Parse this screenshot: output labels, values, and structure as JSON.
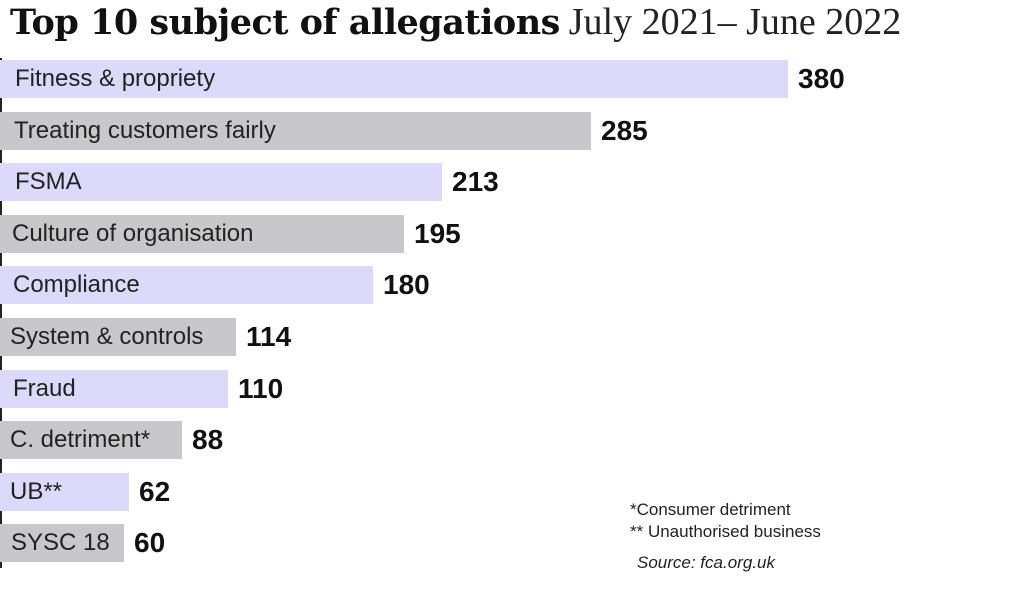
{
  "chart_data": {
    "type": "bar",
    "orientation": "horizontal",
    "title": "Top 10 subject of allegations",
    "subtitle": "July 2021– June 2022",
    "categories": [
      "Fitness & propriety",
      "Treating customers fairly",
      "FSMA",
      "Culture of organisation",
      "Compliance",
      "System & controls",
      "Fraud",
      "C. detriment*",
      "UB**",
      "SYSC 18"
    ],
    "values": [
      380,
      285,
      213,
      195,
      180,
      114,
      110,
      88,
      62,
      60
    ],
    "value_labels": [
      "380",
      "285",
      "213",
      "195",
      "180",
      "114",
      "110",
      "88",
      "62",
      "60"
    ],
    "bar_colors": [
      "#dcdafa",
      "#c8c8cc"
    ],
    "xlabel": "",
    "ylabel": "",
    "xlim": [
      0,
      380
    ],
    "grid": false,
    "legend": "none"
  },
  "notes": {
    "footnote_1": "*Consumer detriment",
    "footnote_2": "** Unauthorised business",
    "source": "Source: fca.org.uk"
  }
}
